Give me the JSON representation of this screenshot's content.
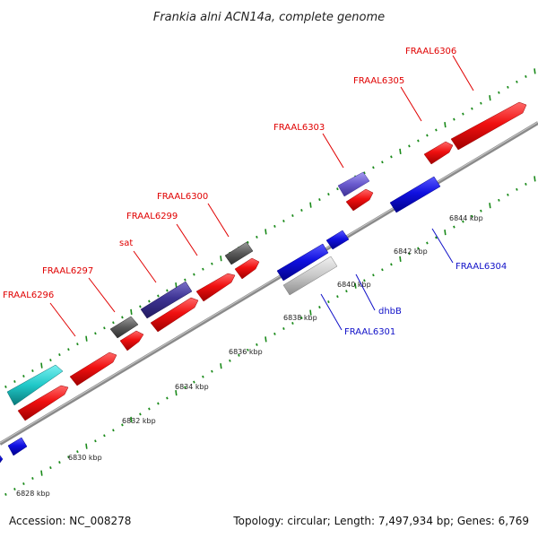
{
  "title": "Frankia alni ACN14a, complete genome",
  "footer": {
    "accession": "Accession: NC_008278",
    "summary": "Topology: circular; Length: 7,497,934 bp; Genes: 6,769"
  },
  "scale_labels": [
    "6828 kbp",
    "6830 kbp",
    "6832 kbp",
    "6834 kbp",
    "6836 kbp",
    "6838 kbp",
    "6840 kbp",
    "6842 kbp",
    "6844 kbp"
  ],
  "forward_labels": [
    "FRAAL6296",
    "FRAAL6297",
    "sat",
    "FRAAL6299",
    "FRAAL6300",
    "FRAAL6303",
    "FRAAL6305",
    "FRAAL6306"
  ],
  "reverse_labels": [
    "FRAAL6301",
    "dhbB",
    "FRAAL6304"
  ],
  "colors": {
    "forward_gene": "#f01010",
    "reverse_gene": "#1010e0",
    "backbone": "#888888",
    "tick": "#1a8a1a",
    "label_red": "#e00000",
    "label_blue": "#1010c8"
  }
}
